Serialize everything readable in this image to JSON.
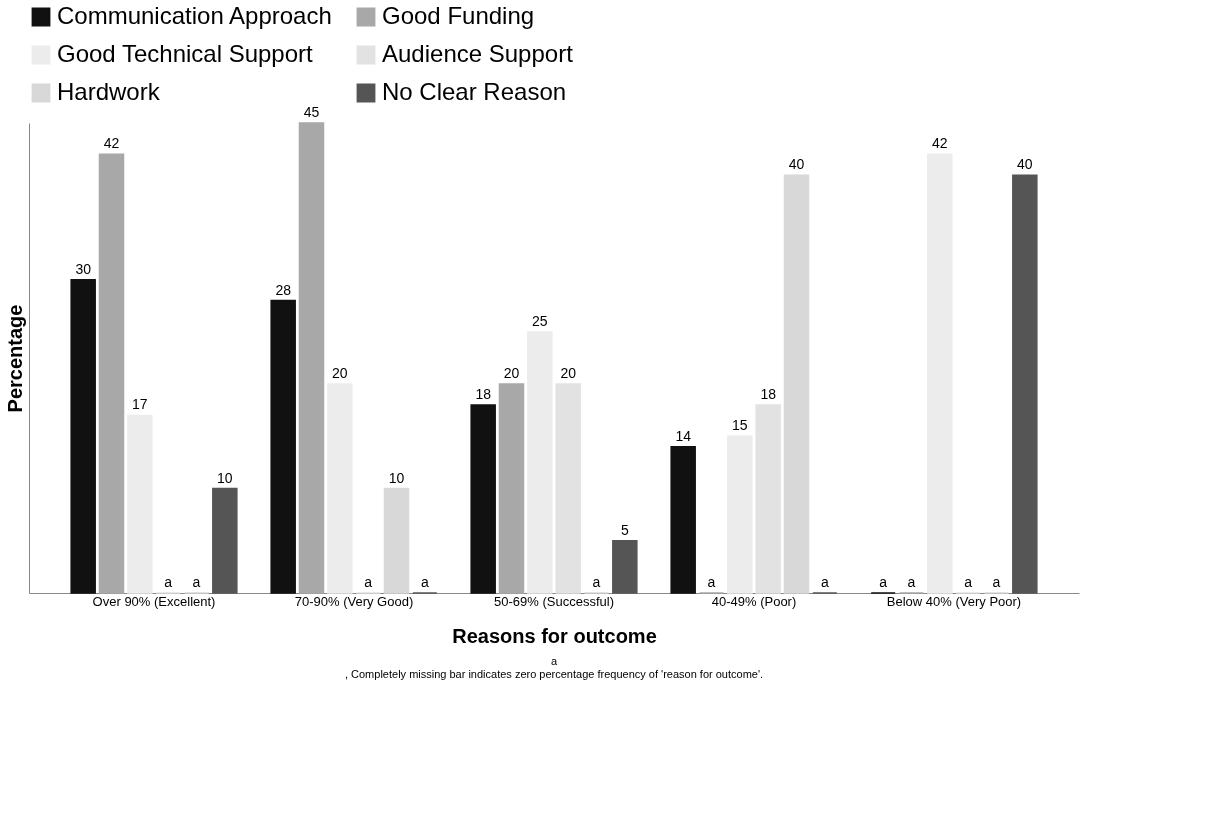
{
  "chart_data": {
    "type": "bar",
    "xlabel": "Reasons for outcome",
    "ylabel": "Percentage",
    "categories": [
      "Over 90% (Excellent)",
      "70-90% (Very Good)",
      "50-69% (Successful)",
      "40-49% (Poor)",
      "Below 40% (Very Poor)"
    ],
    "series": [
      {
        "name": "Communication Approach",
        "color": "#111111",
        "values": [
          30,
          28,
          18,
          14,
          0
        ],
        "value_labels": [
          "30",
          "28",
          "18",
          "14",
          "a"
        ]
      },
      {
        "name": "Good Funding",
        "color": "#a8a8a8",
        "values": [
          42,
          45,
          20,
          0,
          0
        ],
        "value_labels": [
          "42",
          "45",
          "20",
          "a",
          "a"
        ]
      },
      {
        "name": "Good Technical Support",
        "color": "#ececec",
        "values": [
          17,
          20,
          25,
          15,
          42
        ],
        "value_labels": [
          "17",
          "20",
          "25",
          "15",
          "42"
        ]
      },
      {
        "name": "Audience Support",
        "color": "#e2e2e2",
        "values": [
          0,
          0,
          20,
          18,
          0
        ],
        "value_labels": [
          "a",
          "a",
          "20",
          "18",
          "a"
        ]
      },
      {
        "name": "Hardwork",
        "color": "#d8d8d8",
        "values": [
          0,
          10,
          0,
          40,
          0
        ],
        "value_labels": [
          "a",
          "10",
          "a",
          "40",
          "a"
        ]
      },
      {
        "name": "No Clear Reason",
        "color": "#555555",
        "values": [
          10,
          0,
          5,
          0,
          40
        ],
        "value_labels": [
          "10",
          "a",
          "5",
          "a",
          "40"
        ]
      }
    ],
    "legend": "top",
    "grid": false,
    "tick_labels": "x",
    "annotations": [
      "a",
      ", Completely missing bar indicates zero percentage frequency of 'reason for outcome'."
    ]
  }
}
